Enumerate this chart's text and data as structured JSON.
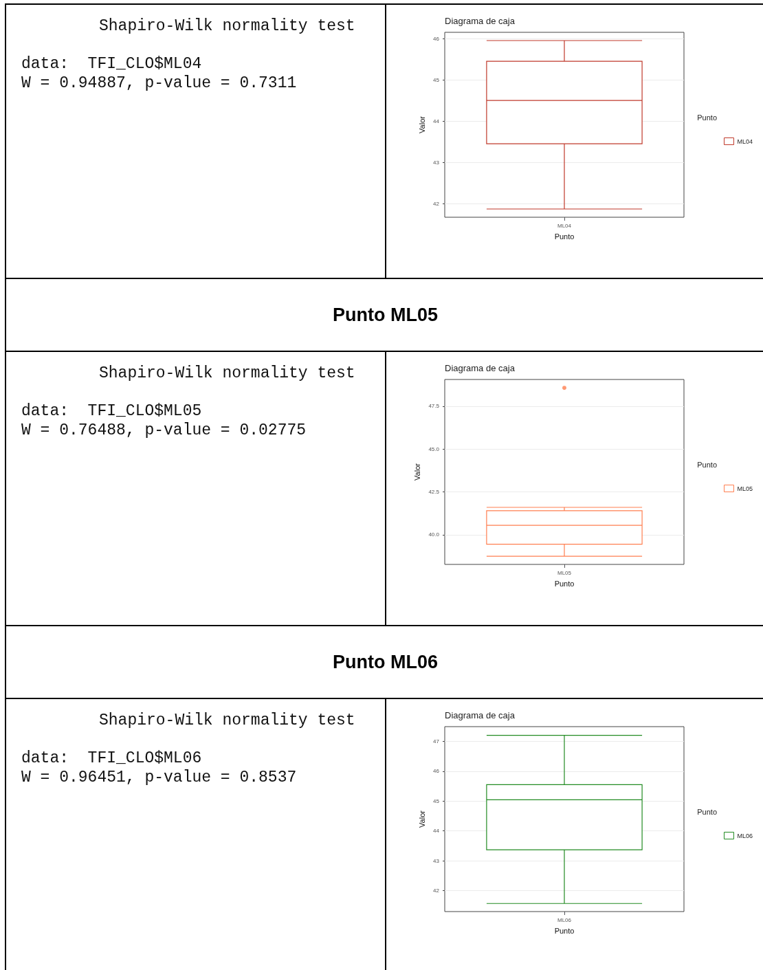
{
  "chart_data": [
    {
      "type": "other",
      "title": "Shapiro-Wilk normality test",
      "annotations": [
        "data:  TFI_CLO$ML04",
        "W = 0.94887, p-value = 0.7311"
      ]
    },
    {
      "type": "box",
      "title": "Diagrama de caja",
      "xlabel": "Punto",
      "ylabel": "Valor",
      "legend_title": "Punto",
      "categories": [
        "ML04"
      ],
      "series": [
        {
          "name": "ML04",
          "color": "#c0392b",
          "boxes": [
            {
              "low": 41.87,
              "q1": 43.45,
              "median": 44.5,
              "q3": 45.45,
              "high": 45.95
            }
          ]
        }
      ],
      "ylim": [
        41.67,
        46.15
      ],
      "yticks": [
        42,
        43,
        44,
        45,
        46
      ],
      "grid": true,
      "legend": "right"
    },
    {
      "type": "other",
      "title": "Punto ML05"
    },
    {
      "type": "other",
      "title": "Shapiro-Wilk normality test",
      "annotations": [
        "data:  TFI_CLO$ML05",
        "W = 0.76488, p-value = 0.02775"
      ]
    },
    {
      "type": "box",
      "title": "Diagrama de caja",
      "xlabel": "Punto",
      "ylabel": "Valor",
      "legend_title": "Punto",
      "categories": [
        "ML05"
      ],
      "series": [
        {
          "name": "ML05",
          "color": "#ff7f50",
          "boxes": [
            {
              "low": 38.75,
              "q1": 39.45,
              "median": 40.55,
              "q3": 41.4,
              "high": 41.6,
              "outliers": [
                48.57
              ]
            }
          ]
        }
      ],
      "ylim": [
        38.27,
        49.06
      ],
      "yticks": [
        {
          "value": 40,
          "label": "40.0"
        },
        47.5,
        {
          "value": 45,
          "label": "45.0"
        },
        42.5
      ],
      "grid": true,
      "legend": "right"
    },
    {
      "type": "other",
      "title": "Punto ML06"
    },
    {
      "type": "other",
      "title": "Shapiro-Wilk normality test",
      "annotations": [
        "data:  TFI_CLO$ML06",
        "W = 0.96451, p-value = 0.8537"
      ]
    },
    {
      "type": "box",
      "title": "Diagrama de caja",
      "xlabel": "Punto",
      "ylabel": "Valor",
      "legend_title": "Punto",
      "categories": [
        "ML06"
      ],
      "series": [
        {
          "name": "ML06",
          "color": "#228b22",
          "boxes": [
            {
              "low": 41.57,
              "q1": 43.37,
              "median": 45.04,
              "q3": 45.55,
              "high": 47.2
            }
          ]
        }
      ],
      "ylim": [
        41.3,
        47.49
      ],
      "yticks": [
        42,
        43,
        44,
        45,
        46,
        47
      ],
      "grid": true,
      "legend": "right"
    }
  ]
}
